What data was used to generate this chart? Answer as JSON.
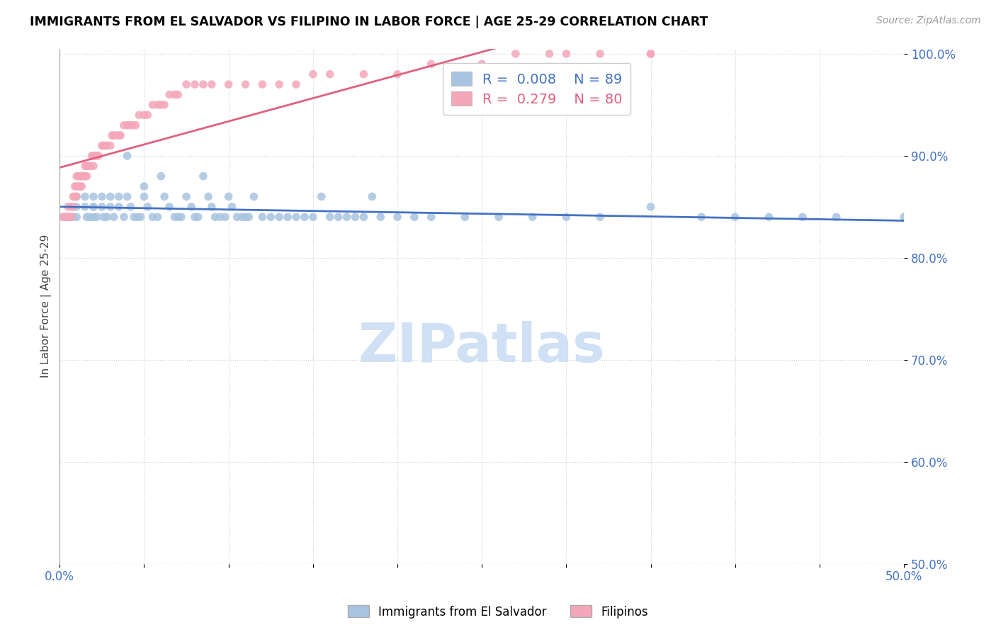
{
  "title": "IMMIGRANTS FROM EL SALVADOR VS FILIPINO IN LABOR FORCE | AGE 25-29 CORRELATION CHART",
  "source": "Source: ZipAtlas.com",
  "ylabel": "In Labor Force | Age 25-29",
  "xlim": [
    0.0,
    0.5
  ],
  "ylim": [
    0.82,
    1.005
  ],
  "xticks": [
    0.0,
    0.05,
    0.1,
    0.15,
    0.2,
    0.25,
    0.3,
    0.35,
    0.4,
    0.45,
    0.5
  ],
  "yticks": [
    0.5,
    0.6,
    0.7,
    0.8,
    0.9,
    1.0
  ],
  "ytick_right_labels": [
    "50.0%",
    "60.0%",
    "70.0%",
    "80.0%",
    "90.0%",
    "100.0%"
  ],
  "xtick_labels": [
    "0.0%",
    "",
    "",
    "",
    "",
    "",
    "",
    "",
    "",
    "",
    "50.0%"
  ],
  "color_salvador": "#a8c4e0",
  "color_filipino": "#f4a7b9",
  "color_salvador_line": "#4472c4",
  "color_filipino_line": "#e06080",
  "watermark": "ZIPatlas",
  "watermark_color": "#d0e0f5",
  "salvador_x": [
    0.002,
    0.005,
    0.008,
    0.01,
    0.01,
    0.01,
    0.015,
    0.015,
    0.016,
    0.018,
    0.02,
    0.02,
    0.02,
    0.02,
    0.022,
    0.025,
    0.025,
    0.026,
    0.028,
    0.03,
    0.03,
    0.032,
    0.035,
    0.035,
    0.038,
    0.04,
    0.04,
    0.042,
    0.044,
    0.046,
    0.048,
    0.05,
    0.05,
    0.052,
    0.055,
    0.058,
    0.06,
    0.062,
    0.065,
    0.068,
    0.07,
    0.072,
    0.075,
    0.078,
    0.08,
    0.082,
    0.085,
    0.088,
    0.09,
    0.092,
    0.095,
    0.098,
    0.1,
    0.102,
    0.105,
    0.108,
    0.11,
    0.112,
    0.115,
    0.12,
    0.125,
    0.13,
    0.135,
    0.14,
    0.145,
    0.15,
    0.155,
    0.16,
    0.165,
    0.17,
    0.175,
    0.18,
    0.185,
    0.19,
    0.2,
    0.21,
    0.22,
    0.24,
    0.26,
    0.28,
    0.3,
    0.32,
    0.35,
    0.38,
    0.4,
    0.42,
    0.44,
    0.46,
    0.5
  ],
  "salvador_y": [
    0.84,
    0.84,
    0.84,
    0.86,
    0.85,
    0.84,
    0.86,
    0.85,
    0.84,
    0.84,
    0.86,
    0.85,
    0.85,
    0.84,
    0.84,
    0.86,
    0.85,
    0.84,
    0.84,
    0.86,
    0.85,
    0.84,
    0.86,
    0.85,
    0.84,
    0.9,
    0.86,
    0.85,
    0.84,
    0.84,
    0.84,
    0.87,
    0.86,
    0.85,
    0.84,
    0.84,
    0.88,
    0.86,
    0.85,
    0.84,
    0.84,
    0.84,
    0.86,
    0.85,
    0.84,
    0.84,
    0.88,
    0.86,
    0.85,
    0.84,
    0.84,
    0.84,
    0.86,
    0.85,
    0.84,
    0.84,
    0.84,
    0.84,
    0.86,
    0.84,
    0.84,
    0.84,
    0.84,
    0.84,
    0.84,
    0.84,
    0.86,
    0.84,
    0.84,
    0.84,
    0.84,
    0.84,
    0.86,
    0.84,
    0.84,
    0.84,
    0.84,
    0.84,
    0.84,
    0.84,
    0.84,
    0.84,
    0.85,
    0.84,
    0.84,
    0.84,
    0.84,
    0.84,
    0.84
  ],
  "filipino_x": [
    0.002,
    0.003,
    0.004,
    0.005,
    0.005,
    0.006,
    0.007,
    0.007,
    0.008,
    0.008,
    0.009,
    0.009,
    0.01,
    0.01,
    0.01,
    0.011,
    0.011,
    0.012,
    0.012,
    0.013,
    0.013,
    0.014,
    0.015,
    0.015,
    0.016,
    0.016,
    0.017,
    0.018,
    0.019,
    0.02,
    0.02,
    0.021,
    0.022,
    0.023,
    0.025,
    0.026,
    0.027,
    0.028,
    0.03,
    0.031,
    0.032,
    0.033,
    0.035,
    0.036,
    0.038,
    0.04,
    0.041,
    0.043,
    0.045,
    0.047,
    0.05,
    0.052,
    0.055,
    0.058,
    0.06,
    0.062,
    0.065,
    0.068,
    0.07,
    0.075,
    0.08,
    0.085,
    0.09,
    0.1,
    0.11,
    0.12,
    0.13,
    0.14,
    0.15,
    0.16,
    0.18,
    0.2,
    0.22,
    0.25,
    0.27,
    0.29,
    0.3,
    0.32,
    0.35,
    0.35
  ],
  "filipino_y": [
    0.84,
    0.84,
    0.84,
    0.84,
    0.85,
    0.84,
    0.85,
    0.84,
    0.85,
    0.86,
    0.86,
    0.87,
    0.86,
    0.87,
    0.88,
    0.87,
    0.88,
    0.87,
    0.88,
    0.87,
    0.88,
    0.88,
    0.88,
    0.89,
    0.88,
    0.89,
    0.89,
    0.89,
    0.9,
    0.89,
    0.9,
    0.9,
    0.9,
    0.9,
    0.91,
    0.91,
    0.91,
    0.91,
    0.91,
    0.92,
    0.92,
    0.92,
    0.92,
    0.92,
    0.93,
    0.93,
    0.93,
    0.93,
    0.93,
    0.94,
    0.94,
    0.94,
    0.95,
    0.95,
    0.95,
    0.95,
    0.96,
    0.96,
    0.96,
    0.97,
    0.97,
    0.97,
    0.97,
    0.97,
    0.97,
    0.97,
    0.97,
    0.97,
    0.98,
    0.98,
    0.98,
    0.98,
    0.99,
    0.99,
    1.0,
    1.0,
    1.0,
    1.0,
    1.0,
    1.0
  ]
}
